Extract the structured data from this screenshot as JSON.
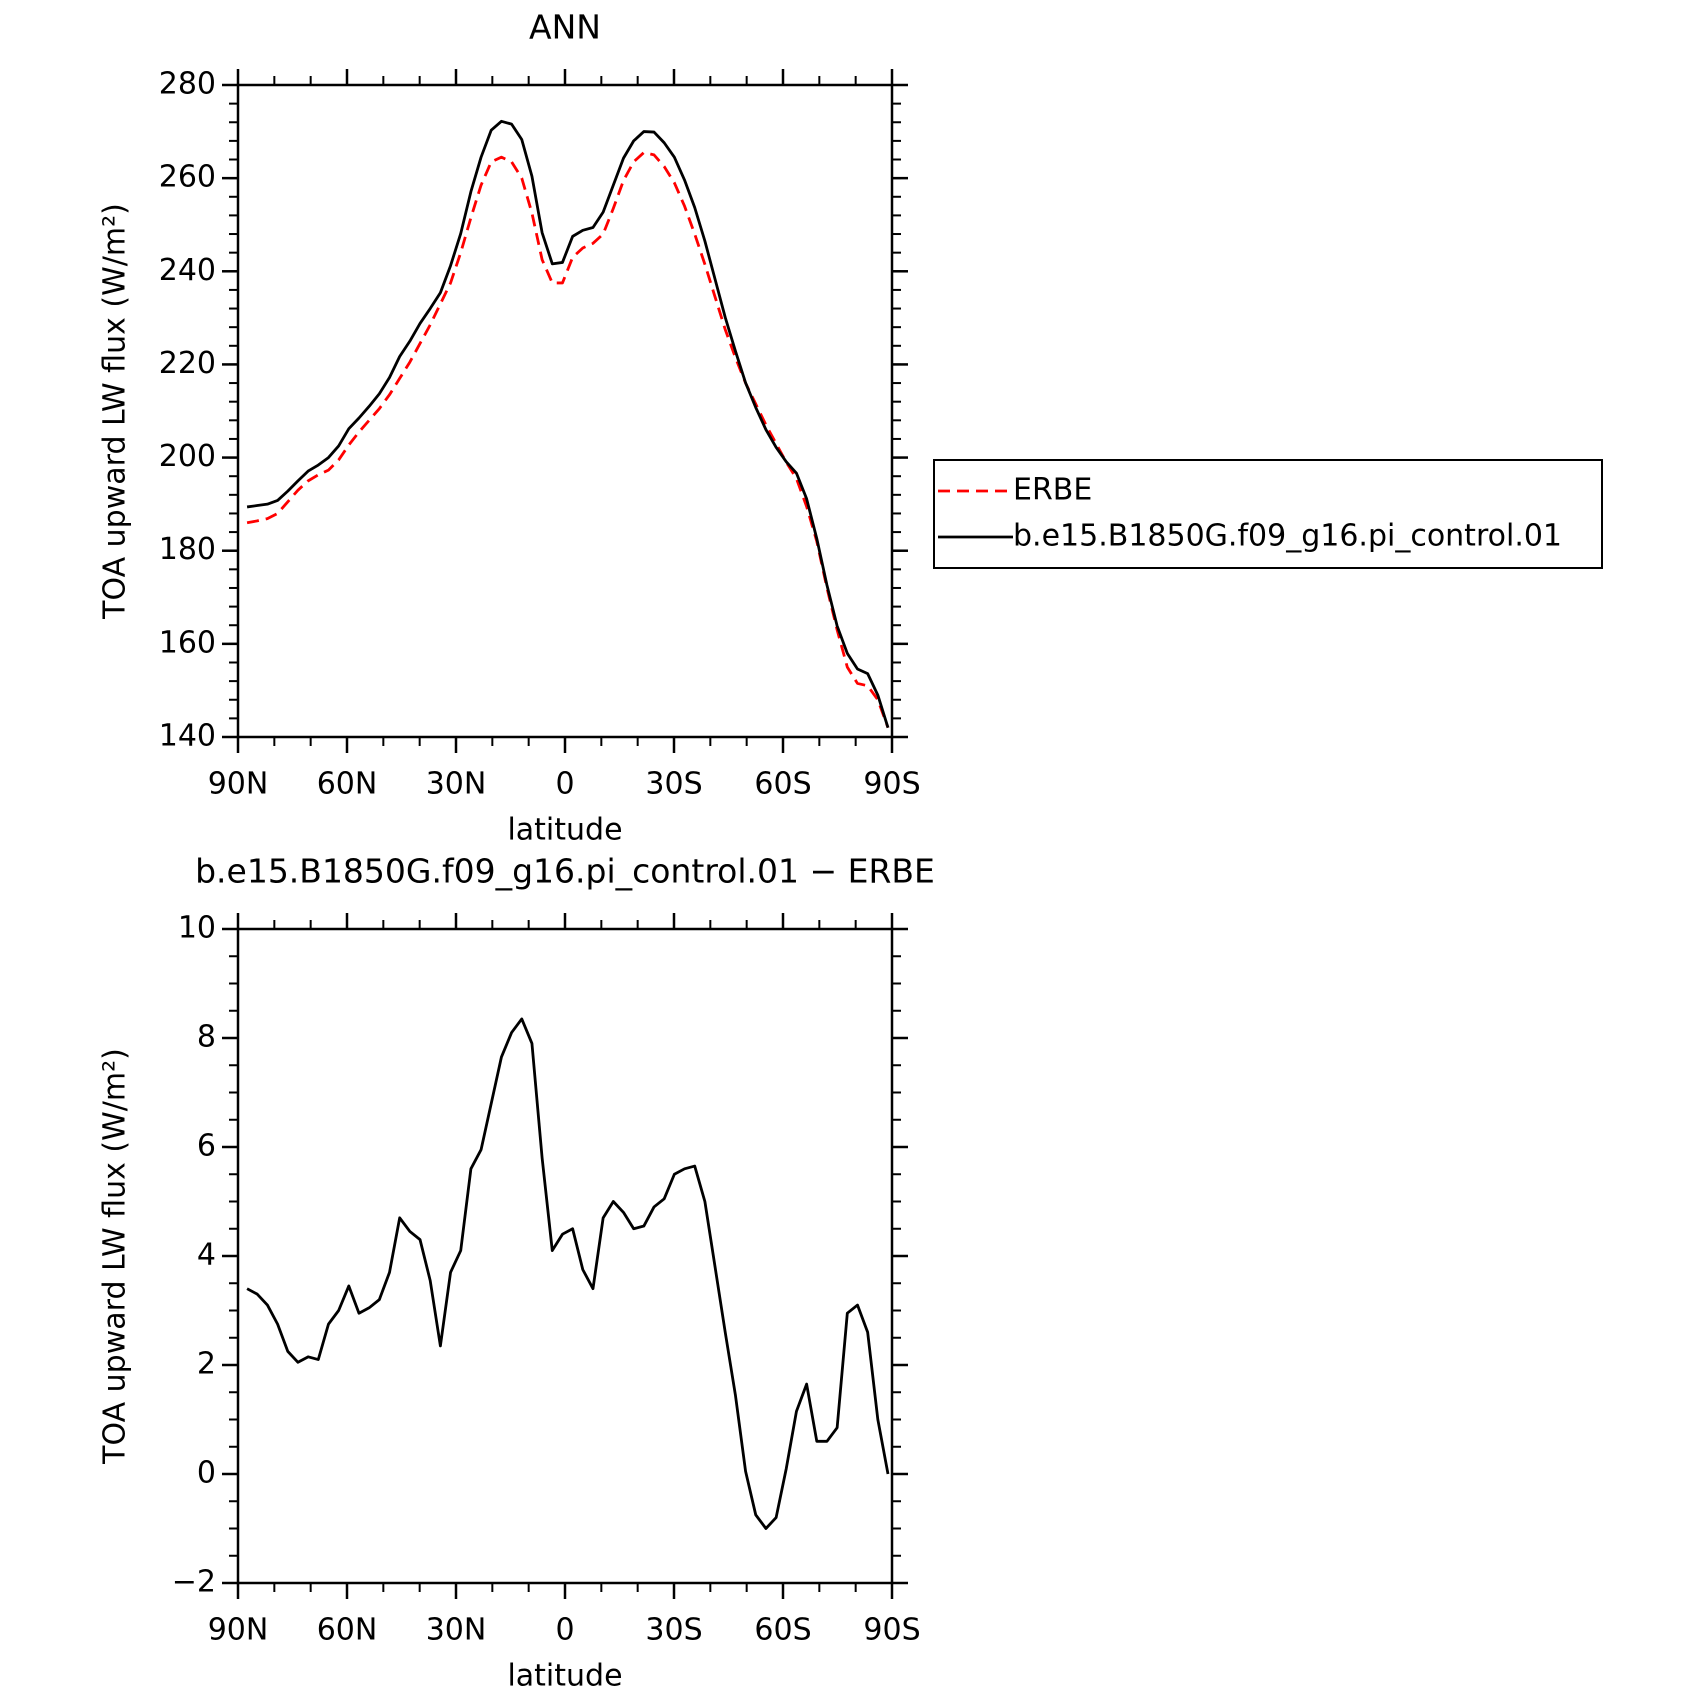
{
  "chart_data": [
    {
      "type": "line",
      "title": "ANN",
      "xlabel": "latitude",
      "ylabel": "TOA upward LW flux (W/m²)",
      "x": [
        87.5,
        84.7,
        81.9,
        79.1,
        76.3,
        73.5,
        70.7,
        67.9,
        65.1,
        62.3,
        59.5,
        56.7,
        53.9,
        51.1,
        48.3,
        45.5,
        42.7,
        39.9,
        37.1,
        34.3,
        31.5,
        28.7,
        25.9,
        23.1,
        20.3,
        17.5,
        14.7,
        11.9,
        9.1,
        6.3,
        3.5,
        0.7,
        -2.1,
        -4.9,
        -7.7,
        -10.5,
        -13.3,
        -16.1,
        -18.9,
        -21.7,
        -24.5,
        -27.3,
        -30.1,
        -32.9,
        -35.7,
        -38.5,
        -41.3,
        -44.1,
        -46.9,
        -49.7,
        -52.5,
        -55.3,
        -58.1,
        -60.9,
        -63.7,
        -66.5,
        -69.3,
        -72.1,
        -74.9,
        -77.7,
        -80.5,
        -83.3,
        -86.1,
        -88.9
      ],
      "series": [
        {
          "name": "ERBE",
          "color": "#ff0000",
          "linestyle": "dashed",
          "values": [
            186,
            186.4,
            186.9,
            188,
            190.5,
            193,
            195,
            196.3,
            197.3,
            199.5,
            202.7,
            205.5,
            208,
            210.5,
            213.5,
            217,
            220.5,
            224.5,
            228.5,
            233,
            237.5,
            244,
            251.5,
            258.5,
            263.5,
            264.5,
            263.5,
            260,
            252.5,
            242.5,
            237.5,
            237.5,
            243,
            245,
            246,
            248,
            253.5,
            259.5,
            263.5,
            265.5,
            265,
            262.5,
            259,
            254,
            248,
            241.5,
            234.5,
            227.5,
            221.5,
            216,
            211.5,
            207,
            203,
            199,
            195.5,
            189.5,
            182,
            172,
            163,
            155,
            151.5,
            151,
            148,
            142
          ]
        },
        {
          "name": "b.e15.B1850G.f09_g16.pi_control.01",
          "color": "#000000",
          "linestyle": "solid",
          "values": [
            189.4,
            189.7,
            190,
            190.8,
            192.8,
            195,
            197.1,
            198.4,
            200,
            202.5,
            206.2,
            208.5,
            211,
            213.7,
            217.2,
            221.7,
            225,
            228.8,
            232,
            235.4,
            241.2,
            248.1,
            257.1,
            264.5,
            270.3,
            272.2,
            271.6,
            268.3,
            260.4,
            248.3,
            241.6,
            241.9,
            247.5,
            248.8,
            249.4,
            252.7,
            258.5,
            264.3,
            268,
            270,
            269.9,
            267.6,
            264.5,
            259.6,
            253.7,
            246.5,
            238.3,
            230.1,
            222.9,
            216.05,
            210.75,
            206,
            202.2,
            199.1,
            196.65,
            191.15,
            182.6,
            172.6,
            163.85,
            157.95,
            154.6,
            153.6,
            149,
            142
          ]
        }
      ],
      "xlim": [
        90,
        -90
      ],
      "xticks": [
        {
          "value": 90,
          "label": "90N"
        },
        {
          "value": 60,
          "label": "60N"
        },
        {
          "value": 30,
          "label": "30N"
        },
        0,
        {
          "value": -30,
          "label": "30S"
        },
        {
          "value": -60,
          "label": "60S"
        },
        {
          "value": -90,
          "label": "90S"
        }
      ],
      "ylim": [
        140,
        280
      ],
      "yticks": [
        140,
        160,
        180,
        200,
        220,
        240,
        260,
        280
      ],
      "grid": false,
      "legend": "right"
    },
    {
      "type": "line",
      "title": "b.e15.B1850G.f09_g16.pi_control.01 − ERBE",
      "xlabel": "latitude",
      "ylabel": "TOA upward LW flux (W/m²)",
      "x": [
        87.5,
        84.7,
        81.9,
        79.1,
        76.3,
        73.5,
        70.7,
        67.9,
        65.1,
        62.3,
        59.5,
        56.7,
        53.9,
        51.1,
        48.3,
        45.5,
        42.7,
        39.9,
        37.1,
        34.3,
        31.5,
        28.7,
        25.9,
        23.1,
        20.3,
        17.5,
        14.7,
        11.9,
        9.1,
        6.3,
        3.5,
        0.7,
        -2.1,
        -4.9,
        -7.7,
        -10.5,
        -13.3,
        -16.1,
        -18.9,
        -21.7,
        -24.5,
        -27.3,
        -30.1,
        -32.9,
        -35.7,
        -38.5,
        -41.3,
        -44.1,
        -46.9,
        -49.7,
        -52.5,
        -55.3,
        -58.1,
        -60.9,
        -63.7,
        -66.5,
        -69.3,
        -72.1,
        -74.9,
        -77.7,
        -80.5,
        -83.3,
        -86.1,
        -88.9
      ],
      "series": [
        {
          "color": "#000000",
          "linestyle": "solid",
          "values": [
            3.4,
            3.3,
            3.1,
            2.75,
            2.25,
            2.05,
            2.15,
            2.1,
            2.75,
            3.0,
            3.45,
            2.95,
            3.05,
            3.2,
            3.7,
            4.7,
            4.45,
            4.3,
            3.55,
            2.35,
            3.7,
            4.1,
            5.6,
            5.95,
            6.8,
            7.65,
            8.1,
            8.35,
            7.9,
            5.8,
            4.1,
            4.4,
            4.5,
            3.75,
            3.4,
            4.7,
            5.0,
            4.8,
            4.5,
            4.55,
            4.9,
            5.05,
            5.5,
            5.6,
            5.65,
            5.0,
            3.8,
            2.6,
            1.45,
            0.05,
            -0.75,
            -1.0,
            -0.8,
            0.1,
            1.15,
            1.65,
            0.6,
            0.6,
            0.85,
            2.95,
            3.1,
            2.6,
            1.0,
            0.0
          ]
        }
      ],
      "xlim": [
        90,
        -90
      ],
      "xticks": [
        {
          "value": 90,
          "label": "90N"
        },
        {
          "value": 60,
          "label": "60N"
        },
        {
          "value": 30,
          "label": "30N"
        },
        0,
        {
          "value": -30,
          "label": "30S"
        },
        {
          "value": -60,
          "label": "60S"
        },
        {
          "value": -90,
          "label": "90S"
        }
      ],
      "ylim": [
        -2,
        10
      ],
      "yticks": [
        {
          "value": -2,
          "label": "−2"
        },
        0,
        2,
        4,
        6,
        8,
        10
      ],
      "grid": false
    }
  ]
}
